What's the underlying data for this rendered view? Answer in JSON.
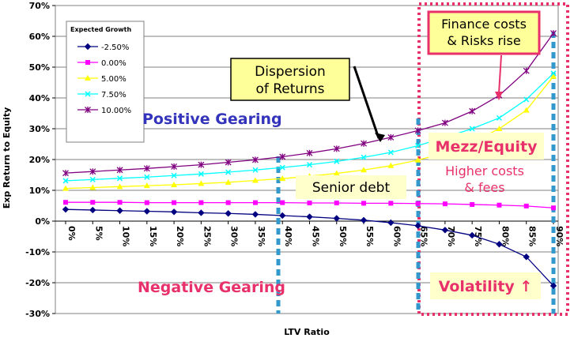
{
  "chart_data": {
    "type": "line",
    "xlabel": "LTV Ratio",
    "ylabel": "Exp Return to Equity",
    "x": [
      "0%",
      "5%",
      "10%",
      "15%",
      "20%",
      "25%",
      "30%",
      "35%",
      "40%",
      "45%",
      "50%",
      "55%",
      "60%",
      "65%",
      "70%",
      "75%",
      "80%",
      "85%",
      "90%"
    ],
    "ylim": [
      -30,
      70
    ],
    "y_ticks": [
      "70%",
      "60%",
      "50%",
      "40%",
      "30%",
      "20%",
      "10%",
      "0%",
      "-10%",
      "-20%",
      "-30%"
    ],
    "grid": "horizontal",
    "legend": {
      "title": "Expected Growth",
      "placement": "top-left"
    },
    "series": [
      {
        "name": "-2.50%",
        "color": "#000080",
        "marker": "diamond",
        "values": [
          3.8,
          3.6,
          3.4,
          3.2,
          3.0,
          2.7,
          2.5,
          2.2,
          1.8,
          1.4,
          0.9,
          0.3,
          -0.5,
          -1.5,
          -2.9,
          -4.6,
          -7.5,
          -11.6,
          -21.0
        ]
      },
      {
        "name": "0.00%",
        "color": "#ff00ff",
        "marker": "square",
        "values": [
          6.1,
          6.1,
          6.1,
          6.0,
          6.0,
          6.0,
          6.0,
          6.0,
          6.0,
          5.9,
          5.9,
          5.8,
          5.8,
          5.7,
          5.6,
          5.4,
          5.2,
          4.9,
          4.3
        ]
      },
      {
        "name": "5.00%",
        "color": "#ffff00",
        "marker": "triangle",
        "values": [
          10.6,
          10.9,
          11.2,
          11.5,
          11.8,
          12.2,
          12.6,
          13.2,
          13.8,
          14.6,
          15.5,
          16.6,
          18.0,
          19.8,
          22.2,
          25.6,
          30.0,
          36.0,
          47.0
        ]
      },
      {
        "name": "7.50%",
        "color": "#00ffff",
        "marker": "x",
        "values": [
          13.1,
          13.5,
          13.9,
          14.3,
          14.8,
          15.3,
          15.9,
          16.6,
          17.4,
          18.3,
          19.4,
          20.7,
          22.3,
          24.5,
          27.2,
          30.0,
          33.5,
          39.5,
          48.0
        ]
      },
      {
        "name": "10.00%",
        "color": "#800080",
        "marker": "star",
        "values": [
          15.6,
          16.1,
          16.6,
          17.1,
          17.7,
          18.3,
          19.1,
          19.9,
          20.9,
          22.1,
          23.5,
          25.2,
          27.2,
          29.4,
          31.9,
          35.7,
          40.8,
          48.8,
          61.0
        ]
      }
    ],
    "annotations": {
      "dispersion": "Dispersion\nof Returns",
      "finance": "Finance costs\n& Risks rise",
      "positive": "Positive Gearing",
      "negative": "Negative Gearing",
      "mezz": "Mezz/Equity",
      "higher": "Higher costs\n& fees",
      "senior": "Senior debt",
      "volatility": "Volatility ↑"
    },
    "colors": {
      "plot_background": "#ffffff",
      "outer_background": "#c0c0c0",
      "vertical_markers": "#3399cc",
      "highlight_box": "#e8316a",
      "note_fill": "#ffff99",
      "positive_text": "#3333bb",
      "negative_text": "#e8316a"
    }
  }
}
